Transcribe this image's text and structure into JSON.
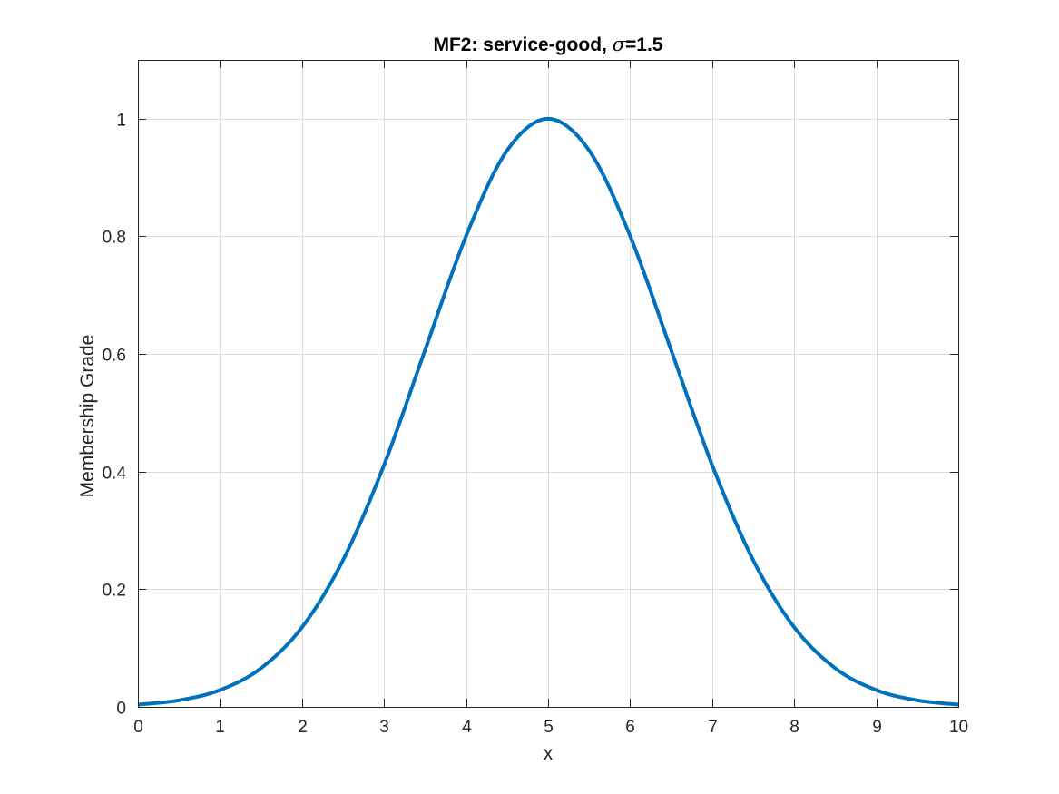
{
  "chart_data": {
    "type": "line",
    "title_prefix": "MF2: service-good, ",
    "title_symbol": "σ",
    "title_suffix": "=1.5",
    "xlabel": "x",
    "ylabel": "Membership Grade",
    "xlim": [
      0,
      10
    ],
    "ylim": [
      0,
      1.1
    ],
    "xticks": [
      0,
      1,
      2,
      3,
      4,
      5,
      6,
      7,
      8,
      9,
      10
    ],
    "xtick_labels": [
      "0",
      "1",
      "2",
      "3",
      "4",
      "5",
      "6",
      "7",
      "8",
      "9",
      "10"
    ],
    "yticks": [
      0,
      0.2,
      0.4,
      0.6,
      0.8,
      1
    ],
    "ytick_labels": [
      "0",
      "0.2",
      "0.4",
      "0.6",
      "0.8",
      "1"
    ],
    "grid": true,
    "series": [
      {
        "color": "#0072BD",
        "x": [
          0,
          0.5,
          1,
          1.5,
          2,
          2.5,
          3,
          3.5,
          4,
          4.5,
          5,
          5.5,
          6,
          6.5,
          7,
          7.5,
          8,
          8.5,
          9,
          9.5,
          10
        ],
        "y": [
          0.0039,
          0.0111,
          0.0286,
          0.0657,
          0.1353,
          0.2494,
          0.4111,
          0.6065,
          0.8007,
          0.946,
          1.0,
          0.946,
          0.8007,
          0.6065,
          0.4111,
          0.2494,
          0.1353,
          0.0657,
          0.0286,
          0.0111,
          0.0039
        ]
      }
    ]
  }
}
